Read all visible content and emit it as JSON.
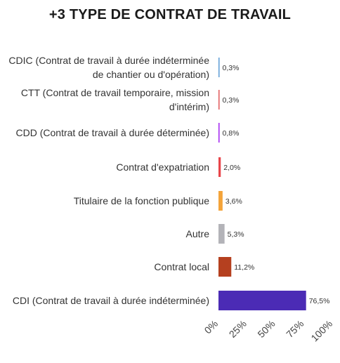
{
  "chart_data": {
    "type": "bar",
    "orientation": "horizontal",
    "title": "+3 TYPE DE CONTRAT DE TRAVAIL",
    "categories": [
      [
        "CDIC (Contrat de travail à durée indéterminée",
        "de chantier ou d'opération)"
      ],
      [
        "CTT (Contrat de travail temporaire, mission",
        "d'intérim)"
      ],
      [
        "CDD (Contrat de travail à durée déterminée)"
      ],
      [
        "Contrat d'expatriation"
      ],
      [
        "Titulaire de la fonction publique"
      ],
      [
        "Autre"
      ],
      [
        "Contrat local"
      ],
      [
        "CDI (Contrat de travail à durée indéterminée)"
      ]
    ],
    "values": [
      0.3,
      0.3,
      0.8,
      2.0,
      3.6,
      5.3,
      11.2,
      76.5
    ],
    "value_labels": [
      "0,3%",
      "0,3%",
      "0,8%",
      "2,0%",
      "3,6%",
      "5,3%",
      "11,2%",
      "76,5%"
    ],
    "colors": [
      "#5b9bd5",
      "#e15759",
      "#a020f0",
      "#e8454a",
      "#f4a43a",
      "#b3b3b8",
      "#b5401f",
      "#4b2bb5"
    ],
    "x_ticks": [
      "0%",
      "25%",
      "50%",
      "75%",
      "100%"
    ],
    "xlim": [
      0,
      100
    ],
    "grid": false
  }
}
